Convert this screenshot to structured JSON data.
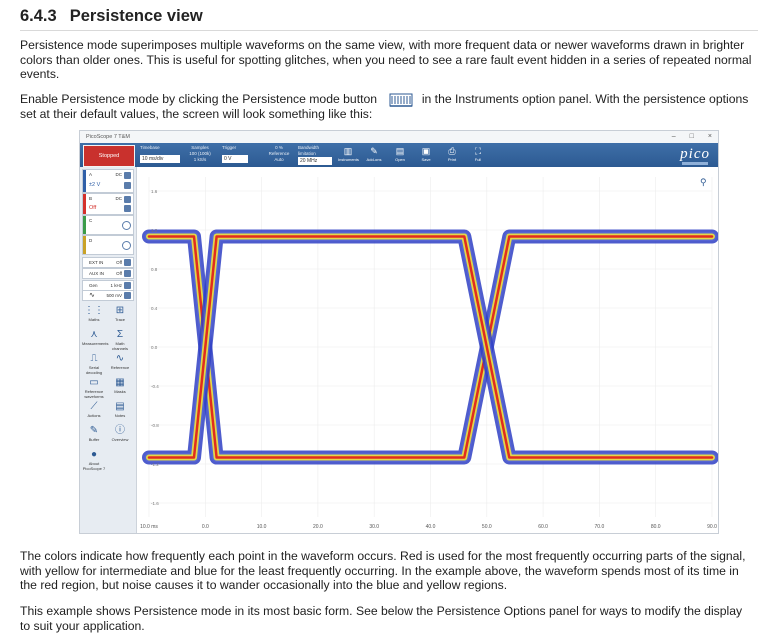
{
  "heading": {
    "number": "6.4.3",
    "title": "Persistence view"
  },
  "intro_paragraph": "Persistence mode superimposes multiple waveforms on the same view, with more frequent data or newer waveforms drawn in brighter colors than older ones. This is useful for spotting glitches, when you need to see a rare fault event hidden in a series of repeated normal events.",
  "enable_paragraph": {
    "before_icon": "Enable Persistence mode by clicking the Persistence mode button",
    "after_icon": "in the Instruments option panel. With the persistence options set at their default values, the screen will look something like this:",
    "icon": "persistence-mode-icon"
  },
  "colors_paragraph": "The colors indicate how frequently each point in the waveform occurs. Red is used for the most frequently occurring parts of the signal, with yellow for intermediate and blue for the least frequently occurring. In the example above, the waveform spends most of its time in the red region, but noise causes it to wander occasionally into the blue and yellow regions.",
  "example_paragraph": "This example shows Persistence mode in its most basic form. See below the Persistence Options panel for ways to modify the display to suit your application.",
  "screenshot": {
    "window_title": "PicoScope 7 T&M",
    "window_controls": [
      "–",
      "□",
      "×"
    ],
    "run_state": "Stopped",
    "toolbar": {
      "timebase_label": "Timebase",
      "timebase_value": "10 ms/div",
      "samples_label": "Samples",
      "samples_value": "100 (100k)",
      "sample_rate_label": "Sample rate",
      "sample_rate_value": "1 kS/s",
      "trigger_label": "Trigger",
      "trigger_value": "0 V",
      "trigger_pct": "0 %",
      "reference_label": "Reference",
      "reference_value": "Auto",
      "bandwidth_label": "Bandwidth limitation",
      "bandwidth_value": "20 MHz",
      "icons": [
        {
          "name": "instruments",
          "label": "Instruments",
          "glyph": "▥"
        },
        {
          "name": "add-ons",
          "label": "Add-ons",
          "glyph": "✎"
        },
        {
          "name": "open",
          "label": "Open",
          "glyph": "▤"
        },
        {
          "name": "save",
          "label": "Save",
          "glyph": "▣"
        },
        {
          "name": "print",
          "label": "Print",
          "glyph": "⎙"
        },
        {
          "name": "full",
          "label": "Full",
          "glyph": "⛶"
        }
      ],
      "logo": "pico"
    },
    "channels": [
      {
        "name": "A",
        "range": "±2 V",
        "coupling": "DC"
      },
      {
        "name": "B",
        "range": "Off",
        "coupling": "DC"
      },
      {
        "name": "C",
        "range": "",
        "coupling": ""
      },
      {
        "name": "D",
        "range": "",
        "coupling": ""
      }
    ],
    "extra_rows": [
      {
        "label": "EXT IN",
        "value": "Off"
      },
      {
        "label": "AUX IN",
        "value": "Off"
      }
    ],
    "gen_row": {
      "label": "Gen",
      "value": "1 kHz"
    },
    "gen_row2": {
      "label": "",
      "value": "500 mV"
    },
    "tools": [
      "Maths",
      "Trace",
      "Measurements",
      "Math channels",
      "Serial decoding",
      "Reference",
      "Reference waveforms",
      "Masks",
      "Actions",
      "Notes",
      "Buffer",
      "Overview",
      "About PicoScope 7"
    ],
    "chart_data": {
      "type": "line",
      "title": "",
      "xlabel": "",
      "ylabel": "",
      "x_ticks": [
        "10.0 ms",
        "0.0",
        "10.0",
        "20.0",
        "30.0",
        "40.0",
        "50.0",
        "60.0",
        "70.0",
        "80.0",
        "90.0"
      ],
      "y_ticks": [
        "1.6",
        "1.2",
        "0.8",
        "0.4",
        "0.0",
        "-0.4",
        "-0.8",
        "-1.2",
        "-1.6"
      ],
      "xlim": [
        -10,
        90
      ],
      "ylim": [
        -2,
        2
      ],
      "style": "persistence",
      "persistence_colors": {
        "high": "#e0231c",
        "mid": "#f2e43a",
        "low": "#2f3fc4"
      },
      "series": [
        {
          "values": [
            [
              -10,
              1.3
            ],
            [
              -2,
              1.3
            ],
            [
              0,
              0.0
            ],
            [
              2,
              -1.3
            ],
            [
              46,
              -1.3
            ],
            [
              50,
              0.0
            ],
            [
              54,
              1.3
            ],
            [
              90,
              1.3
            ]
          ]
        },
        {
          "values": [
            [
              -10,
              -1.3
            ],
            [
              -2,
              -1.3
            ],
            [
              0,
              0.0
            ],
            [
              2,
              1.3
            ],
            [
              46,
              1.3
            ],
            [
              50,
              0.0
            ],
            [
              54,
              -1.3
            ],
            [
              90,
              -1.3
            ]
          ]
        }
      ]
    }
  }
}
